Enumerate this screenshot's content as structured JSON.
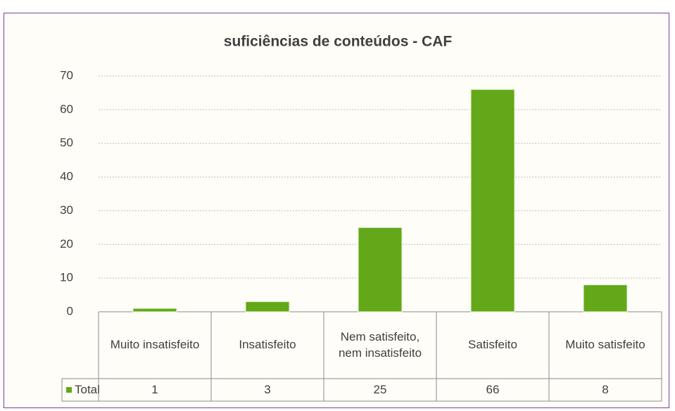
{
  "chart_data": {
    "type": "bar",
    "title": "suficiências de conteúdos - CAF",
    "categories": [
      "Muito insatisfeito",
      "Insatisfeito",
      "Nem satisfeito, nem insatisfeito",
      "Satisfeito",
      "Muito satisfeito"
    ],
    "series": [
      {
        "name": "Total",
        "color": "#62a818",
        "values": [
          1,
          3,
          25,
          66,
          8
        ]
      }
    ],
    "ylim": [
      0,
      70
    ],
    "yticks": [
      0,
      10,
      20,
      30,
      40,
      50,
      60,
      70
    ],
    "grid": true
  }
}
